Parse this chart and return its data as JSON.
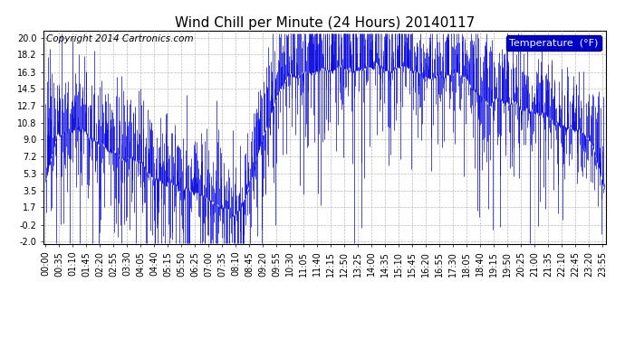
{
  "title": "Wind Chill per Minute (24 Hours) 20140117",
  "copyright": "Copyright 2014 Cartronics.com",
  "legend_label": "Temperature  (°F)",
  "ylabel_values": [
    20.0,
    18.2,
    16.3,
    14.5,
    12.7,
    10.8,
    9.0,
    7.2,
    5.3,
    3.5,
    1.7,
    -0.2,
    -2.0
  ],
  "ylim": [
    -2.0,
    20.0
  ],
  "line_color": "#0000dd",
  "background_color": "#ffffff",
  "plot_bg_color": "#ffffff",
  "grid_color": "#aaaaaa",
  "title_fontsize": 11,
  "tick_fontsize": 7,
  "copyright_fontsize": 7.5,
  "legend_fontsize": 8
}
